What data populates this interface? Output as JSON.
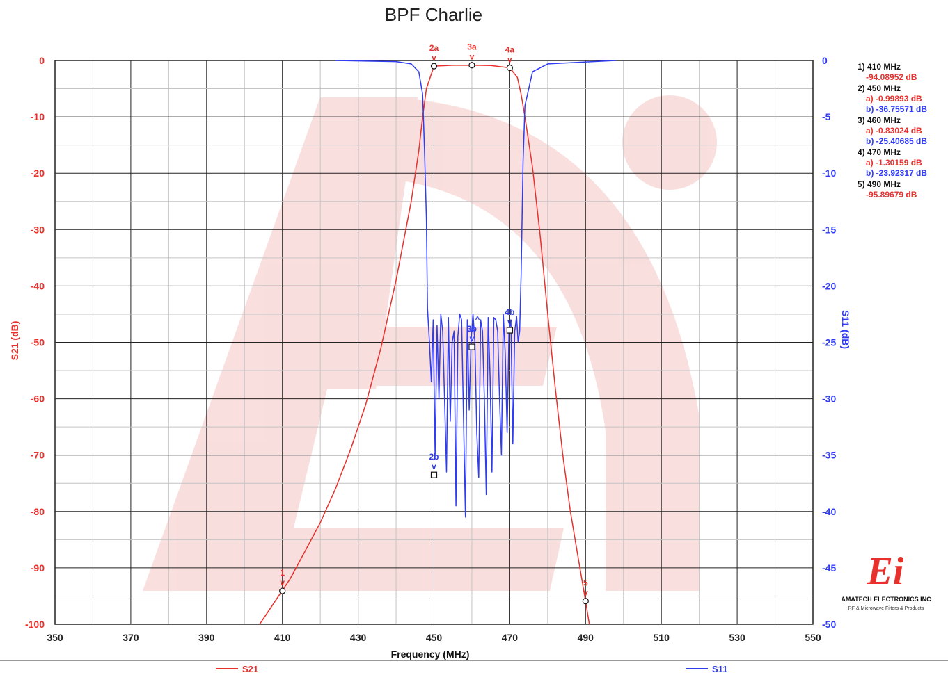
{
  "chart_data": {
    "type": "line",
    "title": "BPF Charlie",
    "xlabel": "Frequency (MHz)",
    "ylabel_left": "S21 (dB)",
    "ylabel_right": "S11 (dB)",
    "xlim": [
      350,
      550
    ],
    "ylim_left": [
      -100,
      0
    ],
    "ylim_right": [
      -50,
      0
    ],
    "x_ticks": [
      "350",
      "370",
      "390",
      "410",
      "430",
      "450",
      "470",
      "490",
      "510",
      "530",
      "550"
    ],
    "y_ticks_left": [
      "0",
      "-10",
      "-20",
      "-30",
      "-40",
      "-50",
      "-60",
      "-70",
      "-80",
      "-90",
      "-100"
    ],
    "y_ticks_right": [
      "0",
      "-5",
      "-10",
      "-15",
      "-20",
      "-25",
      "-30",
      "-35",
      "-40",
      "-45",
      "-50"
    ],
    "grid": true,
    "series": [
      {
        "name": "S21",
        "color": "#e8302c",
        "axis": "left",
        "x": [
          404,
          408,
          412,
          416,
          420,
          424,
          428,
          432,
          436,
          440,
          444,
          446,
          447,
          448,
          450,
          455,
          460,
          465,
          470,
          472,
          473,
          474,
          476,
          478,
          480,
          482,
          484,
          486,
          488,
          490,
          491
        ],
        "y": [
          -100,
          -96,
          -92,
          -87,
          -82,
          -76,
          -69,
          -61,
          -51,
          -39,
          -25,
          -16,
          -10,
          -5,
          -1,
          -0.85,
          -0.83,
          -0.9,
          -1.3,
          -3,
          -6,
          -10,
          -19,
          -31,
          -45,
          -58,
          -70,
          -80,
          -88,
          -95.9,
          -100
        ]
      },
      {
        "name": "S11",
        "color": "#2f3cf0",
        "axis": "right",
        "x": [
          424,
          440,
          444,
          446,
          447,
          447.5,
          448,
          448.3,
          448.8,
          449.3,
          449.8,
          450.3,
          450.8,
          451.3,
          451.8,
          452.3,
          452.8,
          453.3,
          453.8,
          454.3,
          454.8,
          455.3,
          455.8,
          456.3,
          456.8,
          457.3,
          457.8,
          458.3,
          458.8,
          459.3,
          459.8,
          460.3,
          460.8,
          461.3,
          461.8,
          462.3,
          462.8,
          463.3,
          463.8,
          464.3,
          464.8,
          465.3,
          465.8,
          466.3,
          466.8,
          467.3,
          467.8,
          468.3,
          468.8,
          469.3,
          469.8,
          470.3,
          470.8,
          471.3,
          471.8,
          472.2,
          472.6,
          473,
          473.5,
          474,
          476,
          480,
          498
        ],
        "y": [
          0,
          -0.1,
          -0.3,
          -1,
          -3,
          -8,
          -14,
          -22,
          -25,
          -28.5,
          -23,
          -35,
          -23.5,
          -30,
          -22.5,
          -24,
          -30,
          -36.5,
          -22.8,
          -32,
          -25,
          -24,
          -39.5,
          -24.5,
          -22.5,
          -23,
          -32,
          -40.5,
          -23,
          -31,
          -24.7,
          -22.5,
          -25,
          -33,
          -37,
          -23,
          -24,
          -30,
          -38.5,
          -22.8,
          -28,
          -36.5,
          -22.8,
          -23,
          -24,
          -30,
          -35,
          -22.5,
          -26,
          -33,
          -24,
          -23,
          -34,
          -24,
          -22.7,
          -25,
          -24,
          -19,
          -9,
          -4,
          -1,
          -0.3,
          0
        ]
      }
    ],
    "marker_points": [
      {
        "label": "1",
        "series": "S21",
        "x": 410,
        "y": -94.08952
      },
      {
        "label": "2a",
        "series": "S21",
        "x": 450,
        "y": -0.99893
      },
      {
        "label": "3a",
        "series": "S21",
        "x": 460,
        "y": -0.83024
      },
      {
        "label": "4a",
        "series": "S21",
        "x": 470,
        "y": -1.30159
      },
      {
        "label": "5",
        "series": "S21",
        "x": 490,
        "y": -95.89679
      },
      {
        "label": "2b",
        "series": "S11",
        "x": 450,
        "y": -36.75571
      },
      {
        "label": "3b",
        "series": "S11",
        "x": 460,
        "y": -25.40685
      },
      {
        "label": "4b",
        "series": "S11",
        "x": 470,
        "y": -23.92317
      }
    ],
    "marker_caret": "v",
    "marker_caret_up": "^",
    "marker_table": [
      {
        "title": "1) 410 MHz",
        "lines": [
          {
            "text": "-94.08952 dB",
            "color": "red"
          }
        ]
      },
      {
        "title": "2) 450 MHz",
        "lines": [
          {
            "text": "a) -0.99893 dB",
            "color": "red"
          },
          {
            "text": "b) -36.75571 dB",
            "color": "blue"
          }
        ]
      },
      {
        "title": "3) 460 MHz",
        "lines": [
          {
            "text": "a) -0.83024 dB",
            "color": "red"
          },
          {
            "text": "b) -25.40685 dB",
            "color": "blue"
          }
        ]
      },
      {
        "title": "4) 470 MHz",
        "lines": [
          {
            "text": "a) -1.30159 dB",
            "color": "red"
          },
          {
            "text": "b) -23.92317 dB",
            "color": "blue"
          }
        ]
      },
      {
        "title": "5) 490 MHz",
        "lines": [
          {
            "text": "-95.89679 dB",
            "color": "red"
          }
        ]
      }
    ],
    "legend": {
      "placement": "bottom",
      "items": [
        "S21",
        "S11"
      ]
    }
  },
  "logo": {
    "mark": "Ei",
    "company": "AMATECH ELECTRONICS INC",
    "tagline": "RF & Microwave Filters & Products",
    "color": "#e8302c"
  },
  "colors": {
    "s21": "#e8302c",
    "s11": "#2f3cf0",
    "watermark": "#f9d9d9"
  }
}
